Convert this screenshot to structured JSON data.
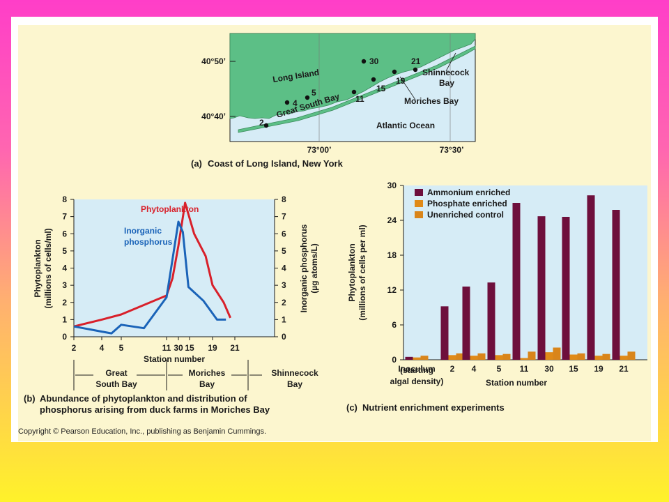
{
  "map": {
    "lat_top": "40°50’",
    "lat_bottom": "40°40’",
    "lon_left": "73°00’",
    "lon_right": "73°30’",
    "long_island": "Long Island",
    "great_south_bay": "Great South Bay",
    "moriches_bay": "Moriches Bay",
    "shinnecock_1": "Shinnecock",
    "shinnecock_2": "Bay",
    "atlantic": "Atlantic Ocean",
    "stations": [
      "2",
      "4",
      "5",
      "11",
      "30",
      "15",
      "19",
      "21"
    ],
    "caption_letter": "(a)",
    "caption": "Coast of Long Island, New York"
  },
  "chart_data": [
    {
      "type": "line",
      "x": [
        "2",
        "4",
        "5",
        "11",
        "30",
        "15",
        "19",
        "21"
      ],
      "xlabel": "Station number",
      "ylabel": "Phytoplankton",
      "ylabel_units": "(millions of cells/ml)",
      "y2label": "Inorganic phosphorus",
      "y2label_units": "(µg atoms/L)",
      "ylim": [
        0,
        8
      ],
      "yticks": [
        "0",
        "1",
        "2",
        "3",
        "4",
        "5",
        "6",
        "7",
        "8"
      ],
      "series": [
        {
          "name": "Phytoplankton",
          "color": "#d8202a",
          "points": [
            [
              0,
              0.6
            ],
            [
              1,
              1.0
            ],
            [
              2,
              1.3
            ],
            [
              3,
              2.4
            ],
            [
              3.5,
              3.4
            ],
            [
              4,
              5.3
            ],
            [
              4.6,
              7.8
            ],
            [
              5.2,
              6.0
            ],
            [
              5.7,
              4.7
            ],
            [
              6,
              3.0
            ],
            [
              6.5,
              2.0
            ],
            [
              6.8,
              1.1
            ]
          ]
        },
        {
          "name": "Inorganic\nphosphorus",
          "series_label_1": "Inorganic",
          "series_label_2": "phosphorus",
          "color": "#1a63b8",
          "points": [
            [
              0,
              0.6
            ],
            [
              1,
              0.3
            ],
            [
              1.5,
              0.2
            ],
            [
              2,
              0.7
            ],
            [
              2.5,
              0.5
            ],
            [
              3,
              2.3
            ],
            [
              3.5,
              4.5
            ],
            [
              4,
              6.7
            ],
            [
              4.4,
              6.1
            ],
            [
              4.9,
              2.9
            ],
            [
              5.6,
              2.1
            ],
            [
              6.2,
              1.0
            ],
            [
              6.6,
              1.0
            ]
          ]
        }
      ],
      "regions": [
        {
          "line1": "Great",
          "line2": "South Bay"
        },
        {
          "line1": "Moriches",
          "line2": "Bay"
        },
        {
          "line1": "Shinnecock",
          "line2": "Bay"
        }
      ],
      "caption_letter": "(b)",
      "caption_1": "Abundance of phytoplankton and distribution of",
      "caption_2": "phosphorus arising from duck farms in Moriches Bay"
    },
    {
      "type": "bar",
      "categories": [
        "Inoculum",
        "2",
        "4",
        "5",
        "11",
        "30",
        "15",
        "19",
        "21"
      ],
      "inoculum_note": [
        "(starting",
        "algal density)"
      ],
      "xlabel": "Station number",
      "ylabel": "Phytoplankton",
      "ylabel_units": "(millions of cells per ml)",
      "ylim": [
        0,
        30
      ],
      "yticks": [
        "0",
        "6",
        "12",
        "18",
        "24",
        "30"
      ],
      "series": [
        {
          "name": "Ammonium enriched",
          "color": "#6e0f3c",
          "values": [
            0.5,
            9.2,
            12.6,
            13.3,
            27.0,
            24.7,
            24.6,
            28.3,
            25.8
          ]
        },
        {
          "name": "Phosphate enriched",
          "color": "#e08a18",
          "values": [
            0.4,
            0.8,
            0.7,
            0.8,
            0.3,
            1.3,
            0.9,
            0.7,
            0.7
          ]
        },
        {
          "name": "Unenriched control",
          "color": "#d9851a",
          "values": [
            0.7,
            1.1,
            1.1,
            1.0,
            1.4,
            2.1,
            1.1,
            1.0,
            1.4
          ]
        }
      ],
      "caption_letter": "(c)",
      "caption": "Nutrient enrichment experiments"
    }
  ],
  "copyright": "Copyright © Pearson Education, Inc., publishing as Benjamin Cummings."
}
